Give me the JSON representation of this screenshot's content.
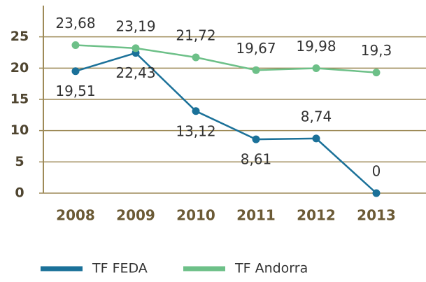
{
  "chart_data": {
    "type": "line",
    "categories": [
      "2008",
      "2009",
      "2010",
      "2011",
      "2012",
      "2013"
    ],
    "series": [
      {
        "name": "TF FEDA",
        "color": "#1b7199",
        "values": [
          19.51,
          22.43,
          13.12,
          8.61,
          8.74,
          0
        ],
        "value_labels": [
          "19,51",
          "22,43",
          "13,12",
          "8,61",
          "8,74",
          "0"
        ]
      },
      {
        "name": "TF Andorra",
        "color": "#6dc088",
        "values": [
          23.68,
          23.19,
          21.72,
          19.67,
          19.98,
          19.3
        ],
        "value_labels": [
          "23,68",
          "23,19",
          "21,72",
          "19,67",
          "19,98",
          "19,3"
        ]
      }
    ],
    "ylim": [
      0,
      30
    ],
    "yticks": [
      0,
      5,
      10,
      15,
      20,
      25
    ],
    "grid": true,
    "grid_color": "#9e8a58",
    "legend": "bottom"
  }
}
